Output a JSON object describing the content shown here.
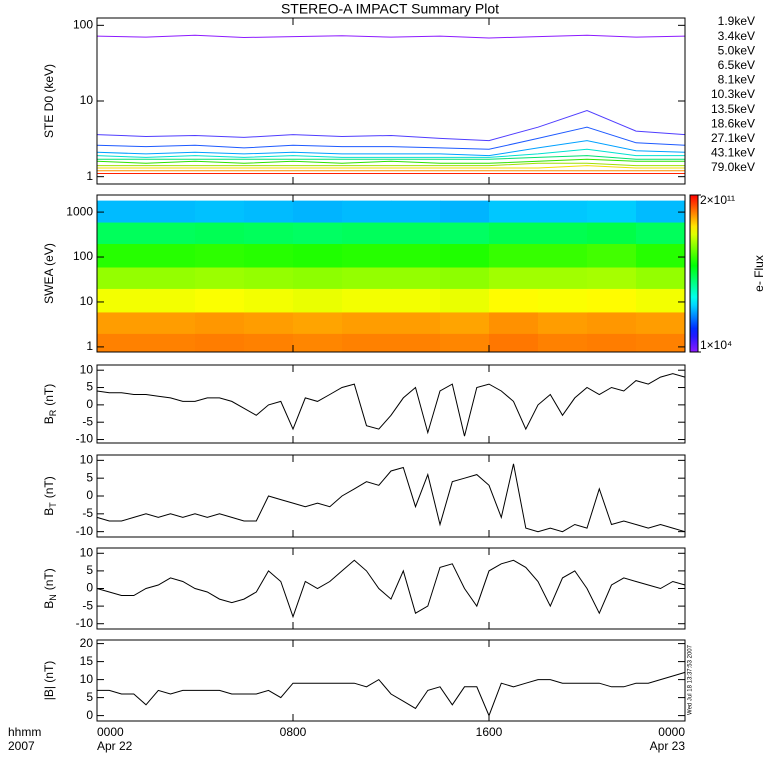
{
  "title": "STEREO-A IMPACT Summary Plot",
  "timestamp": "Wed Jul 18 13:37:53 2007",
  "chart_data": [
    {
      "type": "line",
      "ylabel": "STE D0 (keV)",
      "log_y": true,
      "xlim": [
        0,
        24
      ],
      "xticks": [
        0,
        8,
        16,
        24
      ],
      "ylim": [
        0.8,
        125
      ],
      "yticks": [
        1,
        10,
        100
      ],
      "x": [
        0,
        2,
        4,
        6,
        8,
        10,
        12,
        14,
        16,
        18,
        20,
        22,
        24
      ],
      "series": [
        {
          "name": "1.9keV",
          "color": "#8c1aff",
          "values": [
            72,
            70,
            74,
            69,
            71,
            73,
            70,
            72,
            68,
            71,
            74,
            70,
            72
          ]
        },
        {
          "name": "3.4keV",
          "color": "#4f3dff",
          "values": [
            3.6,
            3.4,
            3.5,
            3.3,
            3.6,
            3.4,
            3.5,
            3.2,
            3.0,
            4.5,
            7.5,
            4.0,
            3.6
          ]
        },
        {
          "name": "5.0keV",
          "color": "#1e5aff",
          "values": [
            2.6,
            2.5,
            2.6,
            2.4,
            2.6,
            2.5,
            2.5,
            2.4,
            2.3,
            3.2,
            4.5,
            2.8,
            2.6
          ]
        },
        {
          "name": "6.5keV",
          "color": "#00a0ff",
          "values": [
            2.1,
            2.0,
            2.1,
            2.0,
            2.1,
            2.0,
            2.0,
            2.0,
            1.9,
            2.4,
            3.0,
            2.2,
            2.1
          ]
        },
        {
          "name": "8.1keV",
          "color": "#00e0d0",
          "values": [
            1.9,
            1.8,
            1.9,
            1.8,
            1.9,
            1.8,
            1.8,
            1.8,
            1.8,
            2.0,
            2.3,
            1.9,
            1.9
          ]
        },
        {
          "name": "10.3keV",
          "color": "#00e070",
          "values": [
            1.7,
            1.7,
            1.7,
            1.7,
            1.7,
            1.7,
            1.7,
            1.7,
            1.7,
            1.8,
            1.9,
            1.7,
            1.7
          ]
        },
        {
          "name": "13.5keV",
          "color": "#30e000",
          "values": [
            1.6,
            1.5,
            1.6,
            1.5,
            1.6,
            1.5,
            1.6,
            1.5,
            1.5,
            1.6,
            1.7,
            1.6,
            1.6
          ]
        },
        {
          "name": "18.6keV",
          "color": "#a0e000",
          "values": [
            1.4,
            1.4,
            1.4,
            1.4,
            1.4,
            1.4,
            1.4,
            1.4,
            1.4,
            1.5,
            1.5,
            1.4,
            1.4
          ]
        },
        {
          "name": "27.1keV",
          "color": "#f0e000",
          "values": [
            1.3,
            1.3,
            1.3,
            1.3,
            1.3,
            1.3,
            1.3,
            1.3,
            1.3,
            1.3,
            1.4,
            1.3,
            1.3
          ]
        },
        {
          "name": "43.1keV",
          "color": "#ff9000",
          "values": [
            1.2,
            1.2,
            1.2,
            1.2,
            1.2,
            1.2,
            1.2,
            1.2,
            1.2,
            1.2,
            1.2,
            1.2,
            1.2
          ]
        },
        {
          "name": "79.0keV",
          "color": "#ff2000",
          "values": [
            1.1,
            1.1,
            1.1,
            1.1,
            1.1,
            1.1,
            1.1,
            1.1,
            1.1,
            1.1,
            1.1,
            1.1,
            1.1
          ]
        }
      ]
    },
    {
      "type": "heatmap",
      "ylabel": "SWEA (eV)",
      "log_y": true,
      "xlim": [
        0,
        24
      ],
      "xticks": [
        0,
        8,
        16,
        24
      ],
      "ylim": [
        0.77,
        2400
      ],
      "yticks": [
        1,
        10,
        100,
        1000
      ],
      "x_edges": [
        0,
        2,
        4,
        6,
        8,
        10,
        12,
        14,
        16,
        18,
        20,
        22,
        24
      ],
      "y_edges": [
        0.77,
        2,
        6,
        20,
        60,
        200,
        600,
        1800
      ],
      "z": [
        [
          30000000000.0,
          30000000000.0,
          32000000000.0,
          30000000000.0,
          28000000000.0,
          30000000000.0,
          30000000000.0,
          28000000000.0,
          35000000000.0,
          30000000000.0,
          32000000000.0,
          30000000000.0
        ],
        [
          20000000000.0,
          20000000000.0,
          22000000000.0,
          20000000000.0,
          18000000000.0,
          20000000000.0,
          20000000000.0,
          18000000000.0,
          24000000000.0,
          20000000000.0,
          22000000000.0,
          20000000000.0
        ],
        [
          4000000000.0,
          4000000000.0,
          4500000000.0,
          4000000000.0,
          3500000000.0,
          4000000000.0,
          4000000000.0,
          3500000000.0,
          5000000000.0,
          4500000000.0,
          5000000000.0,
          4000000000.0
        ],
        [
          1000000000.0,
          1000000000.0,
          1100000000.0,
          1000000000.0,
          900000000.0,
          1000000000.0,
          1000000000.0,
          900000000.0,
          1200000000.0,
          1200000000.0,
          1300000000.0,
          1000000000.0
        ],
        [
          200000000.0,
          200000000.0,
          220000000.0,
          200000000.0,
          180000000.0,
          200000000.0,
          200000000.0,
          180000000.0,
          250000000.0,
          250000000.0,
          300000000.0,
          200000000.0
        ],
        [
          30000000.0,
          30000000.0,
          33000000.0,
          30000000.0,
          27000000.0,
          30000000.0,
          30000000.0,
          27000000.0,
          35000000.0,
          35000000.0,
          40000000.0,
          30000000.0
        ],
        [
          1000000.0,
          1000000.0,
          1100000.0,
          1000000.0,
          900000.0,
          1000000.0,
          1000000.0,
          900000.0,
          1200000.0,
          1200000.0,
          1300000.0,
          1000000.0
        ]
      ],
      "zlim": [
        10000,
        200000000000
      ],
      "log_z": true,
      "colormap": "rainbow",
      "zticks": [
        {
          "value": 10000,
          "label": "1×10⁴"
        },
        {
          "value": 200000000000,
          "label": "2×10¹¹"
        }
      ],
      "zlabel": "e- Flux"
    },
    {
      "type": "line",
      "ylabel": [
        "B",
        "R",
        "(nT)"
      ],
      "xlim": [
        0,
        24
      ],
      "xticks": [
        0,
        8,
        16,
        24
      ],
      "ylim": [
        -11,
        11.5
      ],
      "yticks": [
        -10,
        -5,
        0,
        5,
        10
      ],
      "x": [
        0,
        0.5,
        1,
        1.5,
        2,
        2.5,
        3,
        3.5,
        4,
        4.5,
        5,
        5.5,
        6,
        6.5,
        7,
        7.5,
        8,
        8.5,
        9,
        9.5,
        10,
        10.5,
        11,
        11.5,
        12,
        12.5,
        13,
        13.5,
        14,
        14.5,
        15,
        15.5,
        16,
        16.5,
        17,
        17.5,
        18,
        18.5,
        19,
        19.5,
        20,
        20.5,
        21,
        21.5,
        22,
        22.5,
        23,
        23.5,
        24
      ],
      "series": [
        {
          "color": "#000000",
          "values": [
            4,
            3.5,
            3.5,
            3,
            3,
            2.5,
            2,
            1,
            1,
            2,
            2,
            1,
            -1,
            -3,
            0,
            1,
            -7,
            2,
            1,
            3,
            5,
            6,
            -6,
            -7,
            -3,
            2,
            5,
            -8,
            4,
            6,
            -9,
            5,
            6,
            4,
            1,
            -7,
            0,
            3,
            -3,
            2,
            5,
            3,
            5,
            4,
            7,
            6,
            8,
            9,
            8
          ]
        }
      ]
    },
    {
      "type": "line",
      "ylabel": [
        "B",
        "T",
        "(nT)"
      ],
      "xlim": [
        0,
        24
      ],
      "xticks": [
        0,
        8,
        16,
        24
      ],
      "ylim": [
        -11.5,
        11.5
      ],
      "yticks": [
        -10,
        -5,
        0,
        5,
        10
      ],
      "x": [
        0,
        0.5,
        1,
        1.5,
        2,
        2.5,
        3,
        3.5,
        4,
        4.5,
        5,
        5.5,
        6,
        6.5,
        7,
        7.5,
        8,
        8.5,
        9,
        9.5,
        10,
        10.5,
        11,
        11.5,
        12,
        12.5,
        13,
        13.5,
        14,
        14.5,
        15,
        15.5,
        16,
        16.5,
        17,
        17.5,
        18,
        18.5,
        19,
        19.5,
        20,
        20.5,
        21,
        21.5,
        22,
        22.5,
        23,
        23.5,
        24
      ],
      "series": [
        {
          "color": "#000000",
          "values": [
            -6,
            -7,
            -7,
            -6,
            -5,
            -6,
            -5,
            -6,
            -5,
            -6,
            -5,
            -6,
            -7,
            -7,
            0,
            -1,
            -2,
            -3,
            -2,
            -3,
            0,
            2,
            4,
            3,
            7,
            8,
            -3,
            6,
            -8,
            4,
            5,
            6,
            3,
            -6,
            9,
            -9,
            -10,
            -9,
            -10,
            -8,
            -9,
            2,
            -8,
            -7,
            -8,
            -9,
            -8,
            -9,
            -10
          ]
        }
      ]
    },
    {
      "type": "line",
      "ylabel": [
        "B",
        "N",
        "(nT)"
      ],
      "xlim": [
        0,
        24
      ],
      "xticks": [
        0,
        8,
        16,
        24
      ],
      "ylim": [
        -11.5,
        11.5
      ],
      "yticks": [
        -10,
        -5,
        0,
        5,
        10
      ],
      "x": [
        0,
        0.5,
        1,
        1.5,
        2,
        2.5,
        3,
        3.5,
        4,
        4.5,
        5,
        5.5,
        6,
        6.5,
        7,
        7.5,
        8,
        8.5,
        9,
        9.5,
        10,
        10.5,
        11,
        11.5,
        12,
        12.5,
        13,
        13.5,
        14,
        14.5,
        15,
        15.5,
        16,
        16.5,
        17,
        17.5,
        18,
        18.5,
        19,
        19.5,
        20,
        20.5,
        21,
        21.5,
        22,
        22.5,
        23,
        23.5,
        24
      ],
      "series": [
        {
          "color": "#000000",
          "values": [
            0,
            -1,
            -2,
            -2,
            0,
            1,
            3,
            2,
            0,
            -1,
            -3,
            -4,
            -3,
            -1,
            5,
            2,
            -8,
            2,
            0,
            2,
            5,
            8,
            5,
            0,
            -3,
            5,
            -7,
            -5,
            6,
            7,
            0,
            -5,
            5,
            7,
            8,
            6,
            2,
            -5,
            3,
            5,
            0,
            -7,
            1,
            3,
            2,
            1,
            0,
            2,
            1
          ]
        }
      ]
    },
    {
      "type": "line",
      "ylabel": "|B| (nT)",
      "xlim": [
        0,
        24
      ],
      "xticks": [
        {
          "value": 0,
          "label": "0000"
        },
        {
          "value": 8,
          "label": "0800"
        },
        {
          "value": 16,
          "label": "1600"
        },
        {
          "value": 24,
          "label": "0000"
        }
      ],
      "xdate_labels": [
        {
          "value": 0,
          "label": "Apr 22"
        },
        {
          "value": 24,
          "label": "Apr 23"
        }
      ],
      "xaxis_labels": [
        "hhmm",
        "2007"
      ],
      "ylim": [
        -1.5,
        21
      ],
      "yticks": [
        0,
        5,
        10,
        15,
        20
      ],
      "x": [
        0,
        0.5,
        1,
        1.5,
        2,
        2.5,
        3,
        3.5,
        4,
        4.5,
        5,
        5.5,
        6,
        6.5,
        7,
        7.5,
        8,
        8.5,
        9,
        9.5,
        10,
        10.5,
        11,
        11.5,
        12,
        12.5,
        13,
        13.5,
        14,
        14.5,
        15,
        15.5,
        16,
        16.5,
        17,
        17.5,
        18,
        18.5,
        19,
        19.5,
        20,
        20.5,
        21,
        21.5,
        22,
        22.5,
        23,
        23.5,
        24
      ],
      "series": [
        {
          "color": "#000000",
          "values": [
            7,
            7,
            6,
            6,
            3,
            7,
            6,
            7,
            7,
            7,
            7,
            6,
            6,
            6,
            7,
            5,
            9,
            9,
            9,
            9,
            9,
            9,
            8,
            10,
            6,
            4,
            2,
            7,
            8,
            3,
            8,
            8,
            0,
            9,
            8,
            9,
            10,
            10,
            9,
            9,
            9,
            9,
            8,
            8,
            9,
            9,
            10,
            11,
            12
          ]
        }
      ]
    }
  ]
}
